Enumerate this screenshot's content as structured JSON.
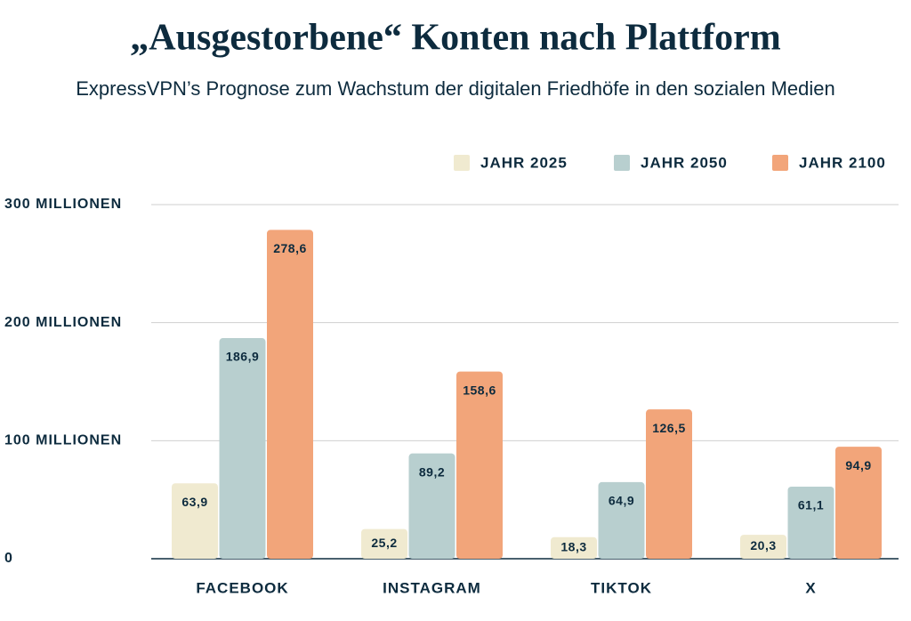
{
  "chart_data": {
    "type": "bar",
    "title": "„Ausgestorbene“ Konten nach Plattform",
    "subtitle": "ExpressVPN’s Prognose zum Wachstum der digitalen Friedhöfe in den sozialen Medien",
    "categories": [
      "FACEBOOK",
      "INSTAGRAM",
      "TIKTOK",
      "X"
    ],
    "series": [
      {
        "name": "JAHR 2025",
        "color": "#f0ead0",
        "values": [
          63.9,
          25.2,
          18.3,
          20.3
        ],
        "value_labels": [
          "63,9",
          "25,2",
          "18,3",
          "20,3"
        ]
      },
      {
        "name": "JAHR 2050",
        "color": "#b8cfcf",
        "values": [
          186.9,
          89.2,
          64.9,
          61.1
        ],
        "value_labels": [
          "186,9",
          "89,2",
          "64,9",
          "61,1"
        ]
      },
      {
        "name": "JAHR 2100",
        "color": "#f2a57a",
        "values": [
          278.6,
          158.6,
          126.5,
          94.9
        ],
        "value_labels": [
          "278,6",
          "158,6",
          "126,5",
          "94,9"
        ]
      }
    ],
    "ylim": [
      0,
      300
    ],
    "yticks": [
      0,
      {
        "value": 100,
        "label": "100 MILLIONEN"
      },
      {
        "value": 200,
        "label": "200 MILLIONEN"
      },
      {
        "value": 300,
        "label": "300 MILLIONEN"
      }
    ],
    "grid": true,
    "legend": "top-right"
  }
}
